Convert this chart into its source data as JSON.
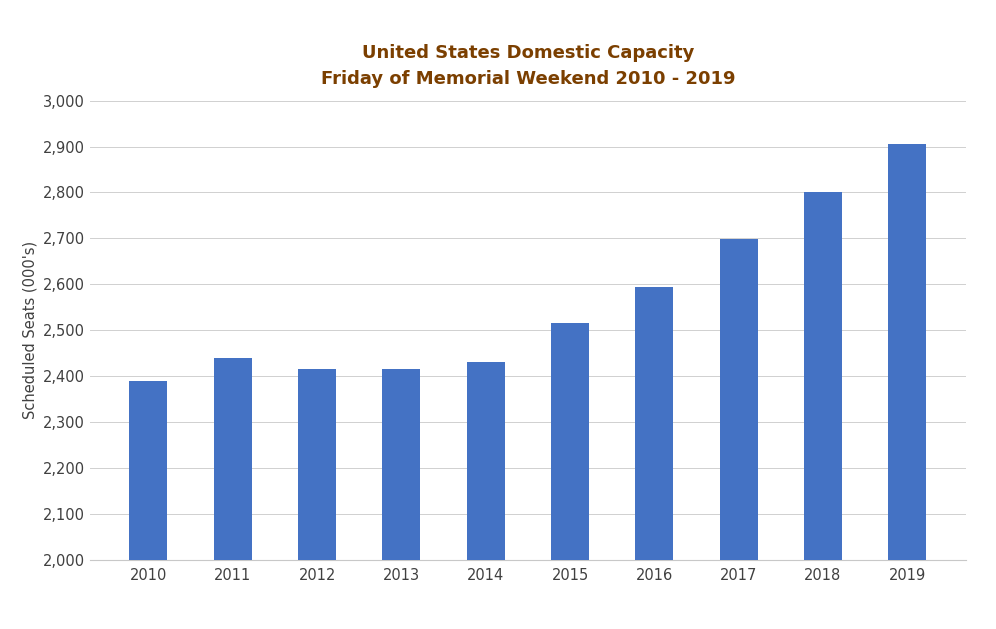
{
  "title_line1": "United States Domestic Capacity",
  "title_line2": "Friday of Memorial Weekend 2010 - 2019",
  "categories": [
    "2010",
    "2011",
    "2012",
    "2013",
    "2014",
    "2015",
    "2016",
    "2017",
    "2018",
    "2019"
  ],
  "values": [
    2390,
    2440,
    2415,
    2415,
    2430,
    2515,
    2595,
    2698,
    2800,
    2905
  ],
  "bar_color": "#4472C4",
  "ylabel": "Scheduled Seats (000's)",
  "ylim_min": 2000,
  "ylim_max": 3000,
  "ytick_step": 100,
  "background_color": "#FFFFFF",
  "title_color": "#7B3F00",
  "tick_color": "#404040",
  "title_fontsize": 13,
  "axis_label_fontsize": 10.5,
  "tick_fontsize": 10.5,
  "grid_color": "#D0D0D0",
  "grid_linewidth": 0.7,
  "bar_width": 0.45
}
